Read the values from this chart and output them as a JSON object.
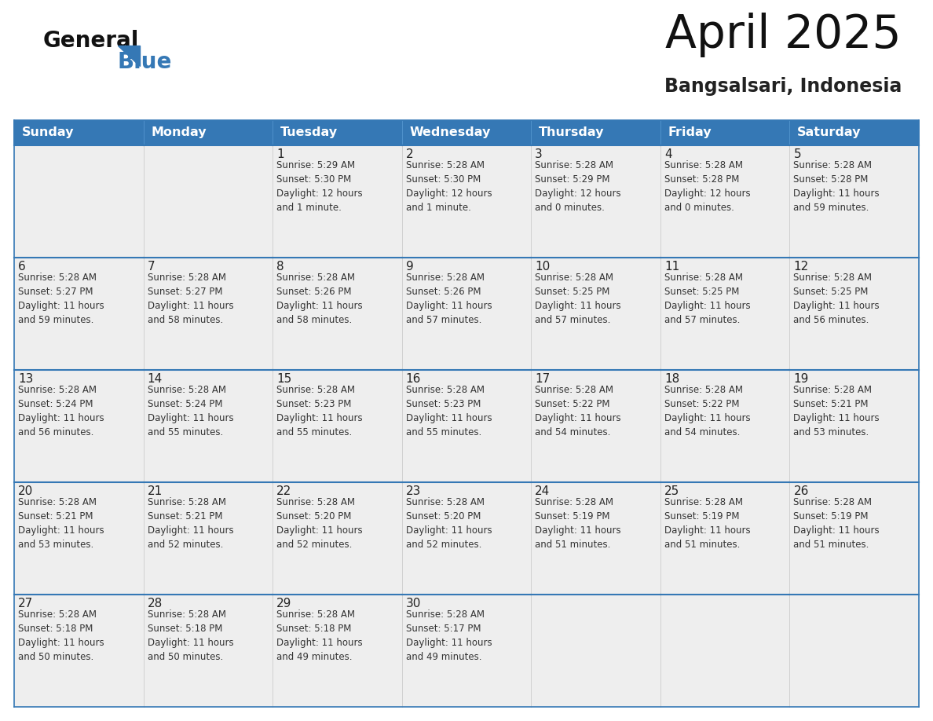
{
  "title": "April 2025",
  "subtitle": "Bangsalsari, Indonesia",
  "days_of_week": [
    "Sunday",
    "Monday",
    "Tuesday",
    "Wednesday",
    "Thursday",
    "Friday",
    "Saturday"
  ],
  "header_bg_color": "#3578b5",
  "header_text_color": "#ffffff",
  "cell_bg_even": "#eeeeee",
  "cell_bg_odd": "#ffffff",
  "row_border_color": "#3578b5",
  "col_border_color": "#cccccc",
  "outer_border_color": "#3578b5",
  "day_num_color": "#222222",
  "cell_text_color": "#333333",
  "title_color": "#111111",
  "subtitle_color": "#222222",
  "weeks": [
    [
      {
        "day": null,
        "info": null
      },
      {
        "day": null,
        "info": null
      },
      {
        "day": 1,
        "info": "Sunrise: 5:29 AM\nSunset: 5:30 PM\nDaylight: 12 hours\nand 1 minute."
      },
      {
        "day": 2,
        "info": "Sunrise: 5:28 AM\nSunset: 5:30 PM\nDaylight: 12 hours\nand 1 minute."
      },
      {
        "day": 3,
        "info": "Sunrise: 5:28 AM\nSunset: 5:29 PM\nDaylight: 12 hours\nand 0 minutes."
      },
      {
        "day": 4,
        "info": "Sunrise: 5:28 AM\nSunset: 5:28 PM\nDaylight: 12 hours\nand 0 minutes."
      },
      {
        "day": 5,
        "info": "Sunrise: 5:28 AM\nSunset: 5:28 PM\nDaylight: 11 hours\nand 59 minutes."
      }
    ],
    [
      {
        "day": 6,
        "info": "Sunrise: 5:28 AM\nSunset: 5:27 PM\nDaylight: 11 hours\nand 59 minutes."
      },
      {
        "day": 7,
        "info": "Sunrise: 5:28 AM\nSunset: 5:27 PM\nDaylight: 11 hours\nand 58 minutes."
      },
      {
        "day": 8,
        "info": "Sunrise: 5:28 AM\nSunset: 5:26 PM\nDaylight: 11 hours\nand 58 minutes."
      },
      {
        "day": 9,
        "info": "Sunrise: 5:28 AM\nSunset: 5:26 PM\nDaylight: 11 hours\nand 57 minutes."
      },
      {
        "day": 10,
        "info": "Sunrise: 5:28 AM\nSunset: 5:25 PM\nDaylight: 11 hours\nand 57 minutes."
      },
      {
        "day": 11,
        "info": "Sunrise: 5:28 AM\nSunset: 5:25 PM\nDaylight: 11 hours\nand 57 minutes."
      },
      {
        "day": 12,
        "info": "Sunrise: 5:28 AM\nSunset: 5:25 PM\nDaylight: 11 hours\nand 56 minutes."
      }
    ],
    [
      {
        "day": 13,
        "info": "Sunrise: 5:28 AM\nSunset: 5:24 PM\nDaylight: 11 hours\nand 56 minutes."
      },
      {
        "day": 14,
        "info": "Sunrise: 5:28 AM\nSunset: 5:24 PM\nDaylight: 11 hours\nand 55 minutes."
      },
      {
        "day": 15,
        "info": "Sunrise: 5:28 AM\nSunset: 5:23 PM\nDaylight: 11 hours\nand 55 minutes."
      },
      {
        "day": 16,
        "info": "Sunrise: 5:28 AM\nSunset: 5:23 PM\nDaylight: 11 hours\nand 55 minutes."
      },
      {
        "day": 17,
        "info": "Sunrise: 5:28 AM\nSunset: 5:22 PM\nDaylight: 11 hours\nand 54 minutes."
      },
      {
        "day": 18,
        "info": "Sunrise: 5:28 AM\nSunset: 5:22 PM\nDaylight: 11 hours\nand 54 minutes."
      },
      {
        "day": 19,
        "info": "Sunrise: 5:28 AM\nSunset: 5:21 PM\nDaylight: 11 hours\nand 53 minutes."
      }
    ],
    [
      {
        "day": 20,
        "info": "Sunrise: 5:28 AM\nSunset: 5:21 PM\nDaylight: 11 hours\nand 53 minutes."
      },
      {
        "day": 21,
        "info": "Sunrise: 5:28 AM\nSunset: 5:21 PM\nDaylight: 11 hours\nand 52 minutes."
      },
      {
        "day": 22,
        "info": "Sunrise: 5:28 AM\nSunset: 5:20 PM\nDaylight: 11 hours\nand 52 minutes."
      },
      {
        "day": 23,
        "info": "Sunrise: 5:28 AM\nSunset: 5:20 PM\nDaylight: 11 hours\nand 52 minutes."
      },
      {
        "day": 24,
        "info": "Sunrise: 5:28 AM\nSunset: 5:19 PM\nDaylight: 11 hours\nand 51 minutes."
      },
      {
        "day": 25,
        "info": "Sunrise: 5:28 AM\nSunset: 5:19 PM\nDaylight: 11 hours\nand 51 minutes."
      },
      {
        "day": 26,
        "info": "Sunrise: 5:28 AM\nSunset: 5:19 PM\nDaylight: 11 hours\nand 51 minutes."
      }
    ],
    [
      {
        "day": 27,
        "info": "Sunrise: 5:28 AM\nSunset: 5:18 PM\nDaylight: 11 hours\nand 50 minutes."
      },
      {
        "day": 28,
        "info": "Sunrise: 5:28 AM\nSunset: 5:18 PM\nDaylight: 11 hours\nand 50 minutes."
      },
      {
        "day": 29,
        "info": "Sunrise: 5:28 AM\nSunset: 5:18 PM\nDaylight: 11 hours\nand 49 minutes."
      },
      {
        "day": 30,
        "info": "Sunrise: 5:28 AM\nSunset: 5:17 PM\nDaylight: 11 hours\nand 49 minutes."
      },
      {
        "day": null,
        "info": null
      },
      {
        "day": null,
        "info": null
      },
      {
        "day": null,
        "info": null
      }
    ]
  ],
  "logo_general_color": "#111111",
  "logo_blue_color": "#3578b5",
  "logo_triangle_color": "#3578b5",
  "fig_width": 11.88,
  "fig_height": 9.18,
  "fig_dpi": 100
}
